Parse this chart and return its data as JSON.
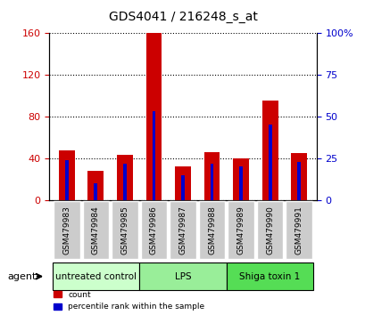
{
  "title": "GDS4041 / 216248_s_at",
  "samples": [
    "GSM479983",
    "GSM479984",
    "GSM479985",
    "GSM479986",
    "GSM479987",
    "GSM479988",
    "GSM479989",
    "GSM479990",
    "GSM479991"
  ],
  "counts": [
    48,
    28,
    43,
    160,
    32,
    46,
    40,
    95,
    45
  ],
  "percentiles": [
    24,
    10,
    22,
    53,
    15,
    22,
    20,
    45,
    23
  ],
  "left_ylim": [
    0,
    160
  ],
  "right_ylim": [
    0,
    100
  ],
  "left_yticks": [
    0,
    40,
    80,
    120,
    160
  ],
  "right_yticks": [
    0,
    25,
    50,
    75,
    100
  ],
  "right_yticklabels": [
    "0",
    "25",
    "50",
    "75",
    "100%"
  ],
  "left_ycolor": "#cc0000",
  "right_ycolor": "#0000cc",
  "bar_color_red": "#cc0000",
  "bar_color_blue": "#0000cc",
  "groups": [
    {
      "label": "untreated control",
      "start": 0,
      "end": 3,
      "color": "#ccffcc"
    },
    {
      "label": "LPS",
      "start": 3,
      "end": 6,
      "color": "#99ee99"
    },
    {
      "label": "Shiga toxin 1",
      "start": 6,
      "end": 9,
      "color": "#55dd55"
    }
  ],
  "agent_label": "agent",
  "legend_count": "count",
  "legend_pct": "percentile rank within the sample",
  "tick_bg_color": "#cccccc",
  "red_bar_width": 0.55,
  "blue_bar_width": 0.12
}
